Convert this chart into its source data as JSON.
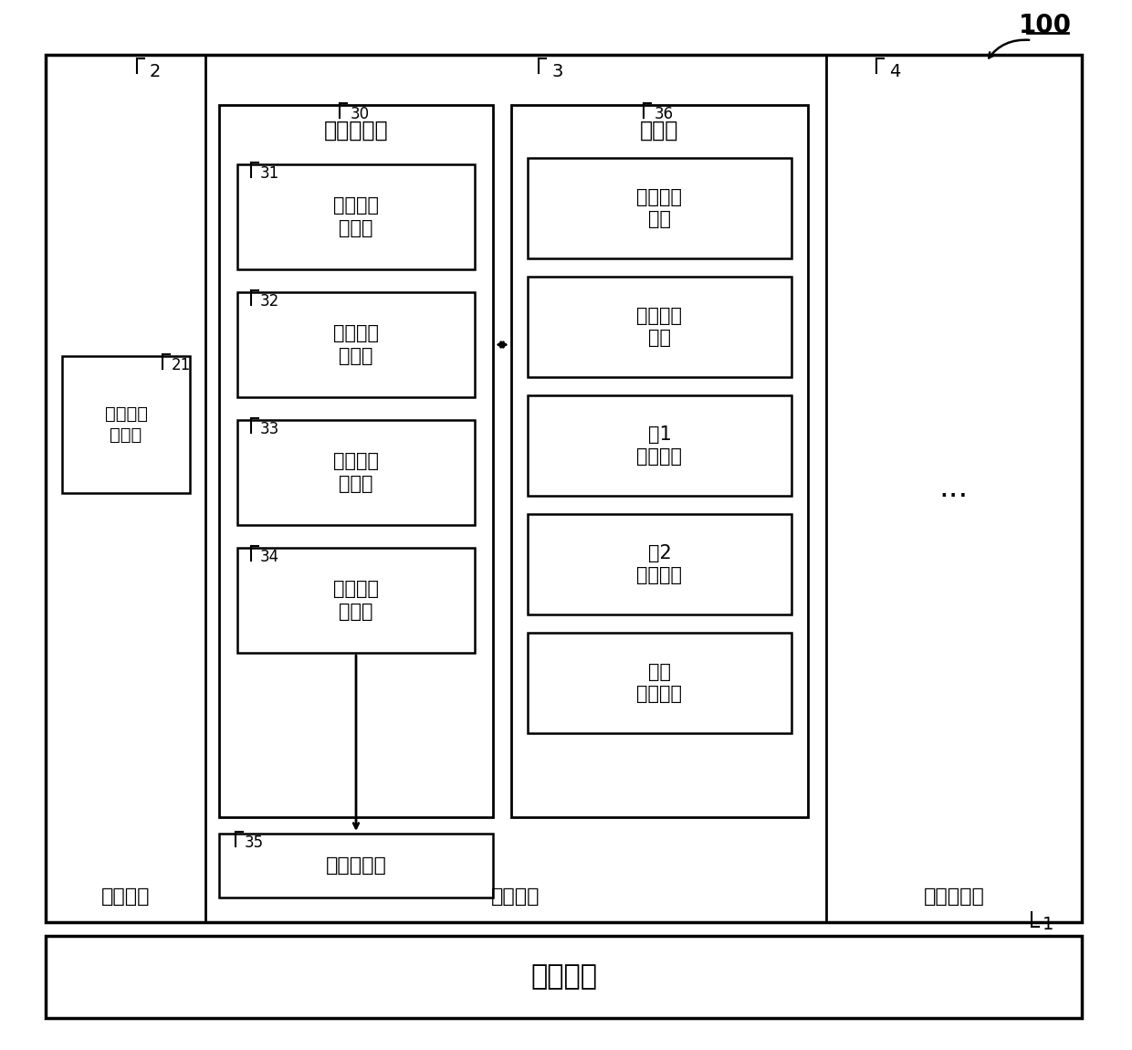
{
  "bg_color": "#ffffff",
  "line_color": "#000000",
  "title_100": "100",
  "label_1": "1",
  "label_2": "2",
  "label_3": "3",
  "label_4": "4",
  "label_21": "21",
  "label_30": "30",
  "label_31": "31",
  "label_32": "32",
  "label_33": "33",
  "label_34": "34",
  "label_35": "35",
  "label_36": "36",
  "text_jiben": "基本单元",
  "text_dianyuan": "电源单元",
  "text_kongzhi": "控制单元",
  "text_beikongzhi": "被控制单元",
  "text_shoumingzhenduan": "寿命诊断部",
  "text_cunchu": "存储部",
  "text_21": "剩余寿命\n存储部",
  "text_31": "负载电流\n计算部",
  "text_32": "推定温度\n计算部",
  "text_33": "剩余寿命\n计算部",
  "text_34": "运转时间\n测量部",
  "text_35": "寿命通知部",
  "text_s1": "负载电流\n信息",
  "text_s2": "周围温度\n信息",
  "text_s3": "第1\n对应信息",
  "text_s4": "第2\n对应信息",
  "text_s5": "额定\n电流信息",
  "text_ellipsis": "..."
}
